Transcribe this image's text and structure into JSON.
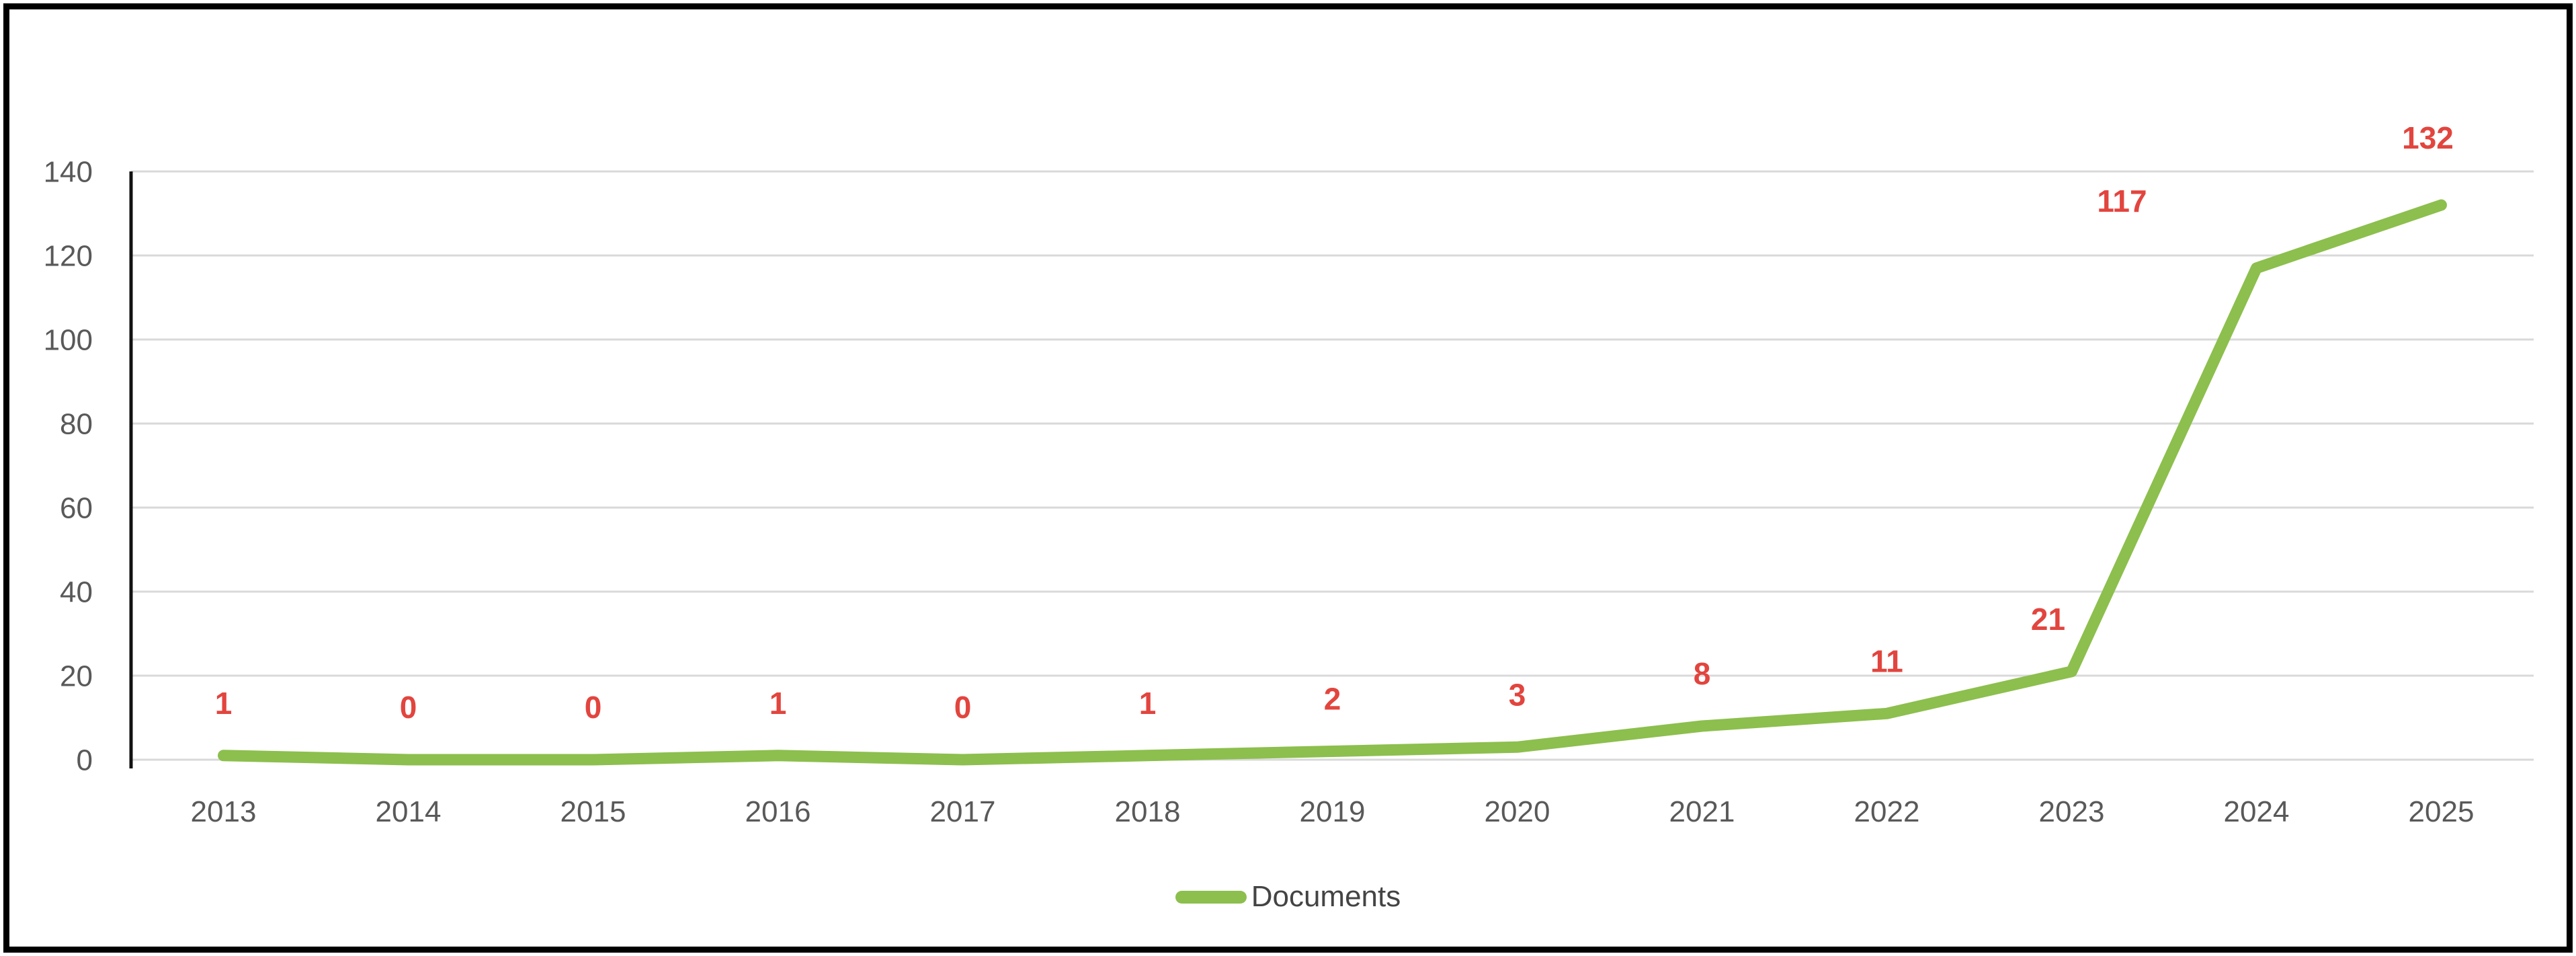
{
  "chart_data": {
    "type": "line",
    "title": "",
    "categories": [
      "2013",
      "2014",
      "2015",
      "2016",
      "2017",
      "2018",
      "2019",
      "2020",
      "2021",
      "2022",
      "2023",
      "2024",
      "2025"
    ],
    "series": [
      {
        "name": "Documents",
        "values": [
          1,
          0,
          0,
          1,
          0,
          1,
          2,
          3,
          8,
          11,
          21,
          117,
          132
        ]
      }
    ],
    "xlabel": "",
    "ylabel": "",
    "ylim": [
      0,
      140
    ],
    "yticks": [
      0,
      20,
      40,
      60,
      80,
      100,
      120,
      140
    ],
    "grid": true,
    "data_labels_shown": true,
    "legend_position": "bottom-center",
    "colors": {
      "line": "#8CBF4D",
      "data_label": "#E2453E",
      "axis_text": "#595959",
      "legend_text": "#444444",
      "gridline": "#D9D9D9",
      "axis_line": "#111111",
      "frame_border": "#000000",
      "background": "#FFFFFF"
    }
  }
}
